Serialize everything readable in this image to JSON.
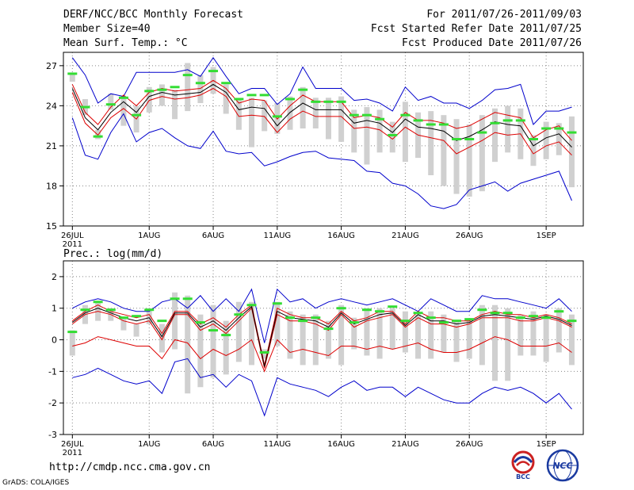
{
  "header": {
    "title": "DERF/NCC/BCC Monthly Forecast",
    "member_size": "Member Size=40",
    "variable": "Mean Surf. Temp.: °C",
    "period": "For 2011/07/26-2011/09/03",
    "started": "Fcst Started Refer Date 2011/07/25",
    "produced": "Fcst Produced Date 2011/07/26"
  },
  "footer": {
    "url": "http://cmdp.ncc.cma.gov.cn",
    "grads": "GrADS: COLA/IGES",
    "logo1_text": "BCC",
    "logo2_text": "NCC"
  },
  "colors": {
    "envelope": "#0000cc",
    "spread": "#dd0000",
    "mean": "#000000",
    "box": "#d0d0d0",
    "median": "#33dd33",
    "grid": "#888888"
  },
  "chart_data": [
    {
      "type": "box",
      "title": "Mean Surf. Temp.: °C",
      "x_tick_labels": [
        "26JUL",
        "1AUG",
        "6AUG",
        "11AUG",
        "16AUG",
        "21AUG",
        "26AUG",
        "1SEP"
      ],
      "x_tick_days": [
        1,
        7,
        12,
        17,
        22,
        27,
        32,
        38
      ],
      "x_sublabel": "2011",
      "ylim": [
        15,
        28
      ],
      "yticks": [
        15,
        18,
        21,
        24,
        27
      ],
      "days": 40,
      "ens_max": [
        27.6,
        26.3,
        24.2,
        24.9,
        24.7,
        26.5,
        26.5,
        26.5,
        26.5,
        26.7,
        26.2,
        27.6,
        26.2,
        24.9,
        25.3,
        25.3,
        24.1,
        24.9,
        26.9,
        25.3,
        25.3,
        25.3,
        24.4,
        24.5,
        24.2,
        23.6,
        25.4,
        24.4,
        24.7,
        24.2,
        24.2,
        23.8,
        24.4,
        25.2,
        25.3,
        25.6,
        22.6,
        23.6,
        23.6,
        23.9
      ],
      "ens_min": [
        23.1,
        20.3,
        20.0,
        22.0,
        23.4,
        21.3,
        22.0,
        22.3,
        21.6,
        21.0,
        20.8,
        22.1,
        20.6,
        20.4,
        20.5,
        19.5,
        19.8,
        20.2,
        20.5,
        20.6,
        20.1,
        20.0,
        19.9,
        19.1,
        19.0,
        18.2,
        18.0,
        17.4,
        16.5,
        16.3,
        16.6,
        17.7,
        18.0,
        18.3,
        17.6,
        18.2,
        18.5,
        18.8,
        19.1,
        16.9
      ],
      "spread_upper": [
        25.6,
        23.5,
        22.6,
        23.9,
        24.8,
        24.0,
        25.0,
        25.3,
        25.1,
        25.2,
        25.3,
        25.9,
        25.3,
        24.2,
        24.5,
        24.4,
        23.0,
        24.0,
        24.8,
        24.3,
        24.3,
        24.3,
        23.1,
        23.3,
        23.1,
        22.4,
        23.5,
        22.9,
        22.9,
        22.7,
        22.3,
        22.5,
        23.0,
        23.5,
        23.3,
        23.1,
        21.6,
        22.2,
        22.5,
        21.4
      ],
      "spread_lower": [
        25.0,
        22.7,
        21.8,
        23.1,
        23.8,
        23.0,
        24.4,
        24.7,
        24.5,
        24.6,
        24.8,
        25.3,
        24.7,
        23.2,
        23.3,
        23.2,
        22.0,
        23.0,
        23.6,
        23.2,
        23.2,
        23.2,
        22.3,
        22.4,
        22.2,
        21.5,
        22.4,
        21.8,
        21.6,
        21.4,
        20.4,
        20.9,
        21.4,
        22.0,
        21.8,
        21.9,
        20.4,
        21.0,
        21.3,
        20.3
      ],
      "mean": [
        25.3,
        23.1,
        22.2,
        23.5,
        24.3,
        23.5,
        24.7,
        25.0,
        24.8,
        24.9,
        25.0,
        25.6,
        25.0,
        23.7,
        23.9,
        23.8,
        22.5,
        23.5,
        24.2,
        23.7,
        23.7,
        23.7,
        22.7,
        22.9,
        22.7,
        22.0,
        23.0,
        22.4,
        22.3,
        22.1,
        21.4,
        21.7,
        22.2,
        22.8,
        22.6,
        22.5,
        21.0,
        21.6,
        21.9,
        20.9
      ],
      "box_upper": [
        26.4,
        24.5,
        22.2,
        24.9,
        24.7,
        24.0,
        25.4,
        25.6,
        25.2,
        27.2,
        26.3,
        26.9,
        25.6,
        24.5,
        24.6,
        24.4,
        24.2,
        24.7,
        25.4,
        24.6,
        24.6,
        24.7,
        23.7,
        23.9,
        23.7,
        22.8,
        24.3,
        23.5,
        23.6,
        23.3,
        23.0,
        22.6,
        23.3,
        23.8,
        24.0,
        23.8,
        21.8,
        22.8,
        22.7,
        23.2
      ],
      "box_lower": [
        25.8,
        23.3,
        21.5,
        23.7,
        22.5,
        22.0,
        23.5,
        24.0,
        23.0,
        23.6,
        24.2,
        24.9,
        23.4,
        22.2,
        20.9,
        22.1,
        21.9,
        22.2,
        22.3,
        22.3,
        21.5,
        21.3,
        20.5,
        19.6,
        20.5,
        20.5,
        19.8,
        20.1,
        18.8,
        18.0,
        17.4,
        17.2,
        17.6,
        19.8,
        20.5,
        20.0,
        19.5,
        20.0,
        20.3,
        17.9
      ],
      "median": [
        26.4,
        23.9,
        21.7,
        24.1,
        24.6,
        23.3,
        25.1,
        25.2,
        25.4,
        26.3,
        25.7,
        26.6,
        25.7,
        24.5,
        24.8,
        24.8,
        23.2,
        24.5,
        25.2,
        24.3,
        24.3,
        24.3,
        23.3,
        23.3,
        23.0,
        21.8,
        23.3,
        22.9,
        22.6,
        22.6,
        21.5,
        21.5,
        22.0,
        22.7,
        22.9,
        22.9,
        21.5,
        22.3,
        22.3,
        22.0
      ]
    },
    {
      "type": "box",
      "title": "Prec.: log(mm/d)",
      "x_tick_labels": [
        "26JUL",
        "1AUG",
        "6AUG",
        "11AUG",
        "16AUG",
        "21AUG",
        "26AUG",
        "1SEP"
      ],
      "x_tick_days": [
        1,
        7,
        12,
        17,
        22,
        27,
        32,
        38
      ],
      "x_sublabel": "2011",
      "ylim": [
        -3,
        2.5
      ],
      "yticks": [
        -3,
        -2,
        -1,
        0,
        1,
        2
      ],
      "days": 40,
      "ens_max": [
        1.0,
        1.2,
        1.3,
        1.2,
        1.0,
        0.9,
        0.9,
        1.2,
        1.3,
        1.0,
        1.4,
        0.9,
        1.3,
        0.9,
        1.6,
        -0.1,
        1.6,
        1.2,
        1.3,
        1.0,
        1.2,
        1.3,
        1.2,
        1.1,
        1.2,
        1.3,
        1.1,
        0.9,
        1.3,
        1.1,
        0.9,
        0.9,
        1.4,
        1.3,
        1.3,
        1.2,
        1.1,
        1.0,
        1.3,
        0.9
      ],
      "ens_min": [
        -1.2,
        -1.1,
        -0.9,
        -1.1,
        -1.3,
        -1.4,
        -1.3,
        -1.7,
        -0.7,
        -0.6,
        -1.2,
        -1.1,
        -1.5,
        -1.1,
        -1.3,
        -2.4,
        -1.2,
        -1.4,
        -1.5,
        -1.6,
        -1.8,
        -1.5,
        -1.3,
        -1.6,
        -1.5,
        -1.5,
        -1.8,
        -1.5,
        -1.7,
        -1.9,
        -2.0,
        -2.0,
        -1.7,
        -1.5,
        -1.6,
        -1.5,
        -1.7,
        -2.0,
        -1.7,
        -2.2
      ],
      "spread_upper": [
        0.6,
        0.9,
        1.1,
        0.9,
        0.8,
        0.7,
        0.8,
        0.2,
        0.9,
        0.9,
        0.5,
        0.7,
        0.4,
        0.8,
        1.1,
        -0.8,
        1.0,
        0.8,
        0.7,
        0.7,
        0.5,
        0.9,
        0.6,
        0.7,
        0.9,
        0.9,
        0.5,
        0.9,
        0.7,
        0.7,
        0.6,
        0.6,
        0.8,
        0.9,
        0.8,
        0.8,
        0.7,
        0.8,
        0.7,
        0.5
      ],
      "spread_lower": [
        0.5,
        0.8,
        0.9,
        0.8,
        0.6,
        0.5,
        0.6,
        0.0,
        0.8,
        0.8,
        0.3,
        0.5,
        0.2,
        0.6,
        1.0,
        -0.9,
        0.8,
        0.6,
        0.6,
        0.5,
        0.3,
        0.8,
        0.4,
        0.6,
        0.7,
        0.8,
        0.4,
        0.7,
        0.5,
        0.5,
        0.4,
        0.5,
        0.7,
        0.7,
        0.7,
        0.6,
        0.6,
        0.7,
        0.6,
        0.4
      ],
      "spread_low": [
        -0.2,
        -0.1,
        0.1,
        0.0,
        -0.1,
        -0.2,
        -0.2,
        -0.6,
        0.0,
        -0.1,
        -0.6,
        -0.3,
        -0.5,
        -0.3,
        0.0,
        -1.0,
        0.0,
        -0.4,
        -0.3,
        -0.4,
        -0.5,
        -0.2,
        -0.2,
        -0.3,
        -0.2,
        -0.3,
        -0.2,
        -0.1,
        -0.3,
        -0.4,
        -0.4,
        -0.3,
        -0.1,
        0.1,
        0.0,
        -0.2,
        -0.2,
        -0.2,
        -0.1,
        -0.4
      ],
      "mean": [
        0.55,
        0.85,
        1.0,
        0.85,
        0.7,
        0.6,
        0.7,
        0.1,
        0.85,
        0.85,
        0.4,
        0.6,
        0.3,
        0.7,
        1.05,
        -0.85,
        0.9,
        0.7,
        0.65,
        0.6,
        0.4,
        0.85,
        0.5,
        0.65,
        0.8,
        0.85,
        0.45,
        0.8,
        0.6,
        0.6,
        0.5,
        0.55,
        0.75,
        0.8,
        0.75,
        0.7,
        0.65,
        0.75,
        0.65,
        0.45
      ],
      "box_upper": [
        0.3,
        1.1,
        1.2,
        1.0,
        0.7,
        0.5,
        1.0,
        0.5,
        1.5,
        1.4,
        0.8,
        1.1,
        0.6,
        1.2,
        1.2,
        -0.3,
        1.2,
        0.9,
        0.8,
        0.8,
        0.6,
        1.1,
        0.7,
        1.0,
        1.0,
        1.0,
        0.9,
        0.8,
        0.9,
        0.8,
        0.6,
        0.6,
        1.1,
        1.1,
        1.0,
        0.8,
        0.9,
        0.8,
        1.0,
        0.8
      ],
      "box_lower": [
        -0.5,
        0.5,
        0.6,
        0.6,
        0.3,
        0.1,
        0.5,
        -0.4,
        -0.3,
        -1.7,
        -1.5,
        -1.2,
        -1.1,
        -0.7,
        -0.8,
        -0.6,
        -0.2,
        -0.6,
        -0.8,
        -0.8,
        -0.6,
        -0.8,
        -0.3,
        -0.5,
        -0.6,
        -0.3,
        -0.4,
        -0.6,
        -0.6,
        -0.4,
        -0.7,
        -0.6,
        -0.8,
        -1.3,
        -1.3,
        -0.5,
        -0.5,
        -0.7,
        -0.4,
        -0.8
      ],
      "median": [
        0.25,
        0.95,
        1.2,
        0.95,
        0.7,
        0.75,
        0.95,
        0.6,
        1.3,
        1.3,
        0.55,
        0.3,
        0.15,
        0.8,
        1.1,
        -0.4,
        1.15,
        0.7,
        0.6,
        0.7,
        0.35,
        1.0,
        0.55,
        0.95,
        0.9,
        1.05,
        0.6,
        0.85,
        0.7,
        0.55,
        0.6,
        0.65,
        0.95,
        0.85,
        0.85,
        0.7,
        0.75,
        0.7,
        0.9,
        0.6
      ]
    }
  ]
}
